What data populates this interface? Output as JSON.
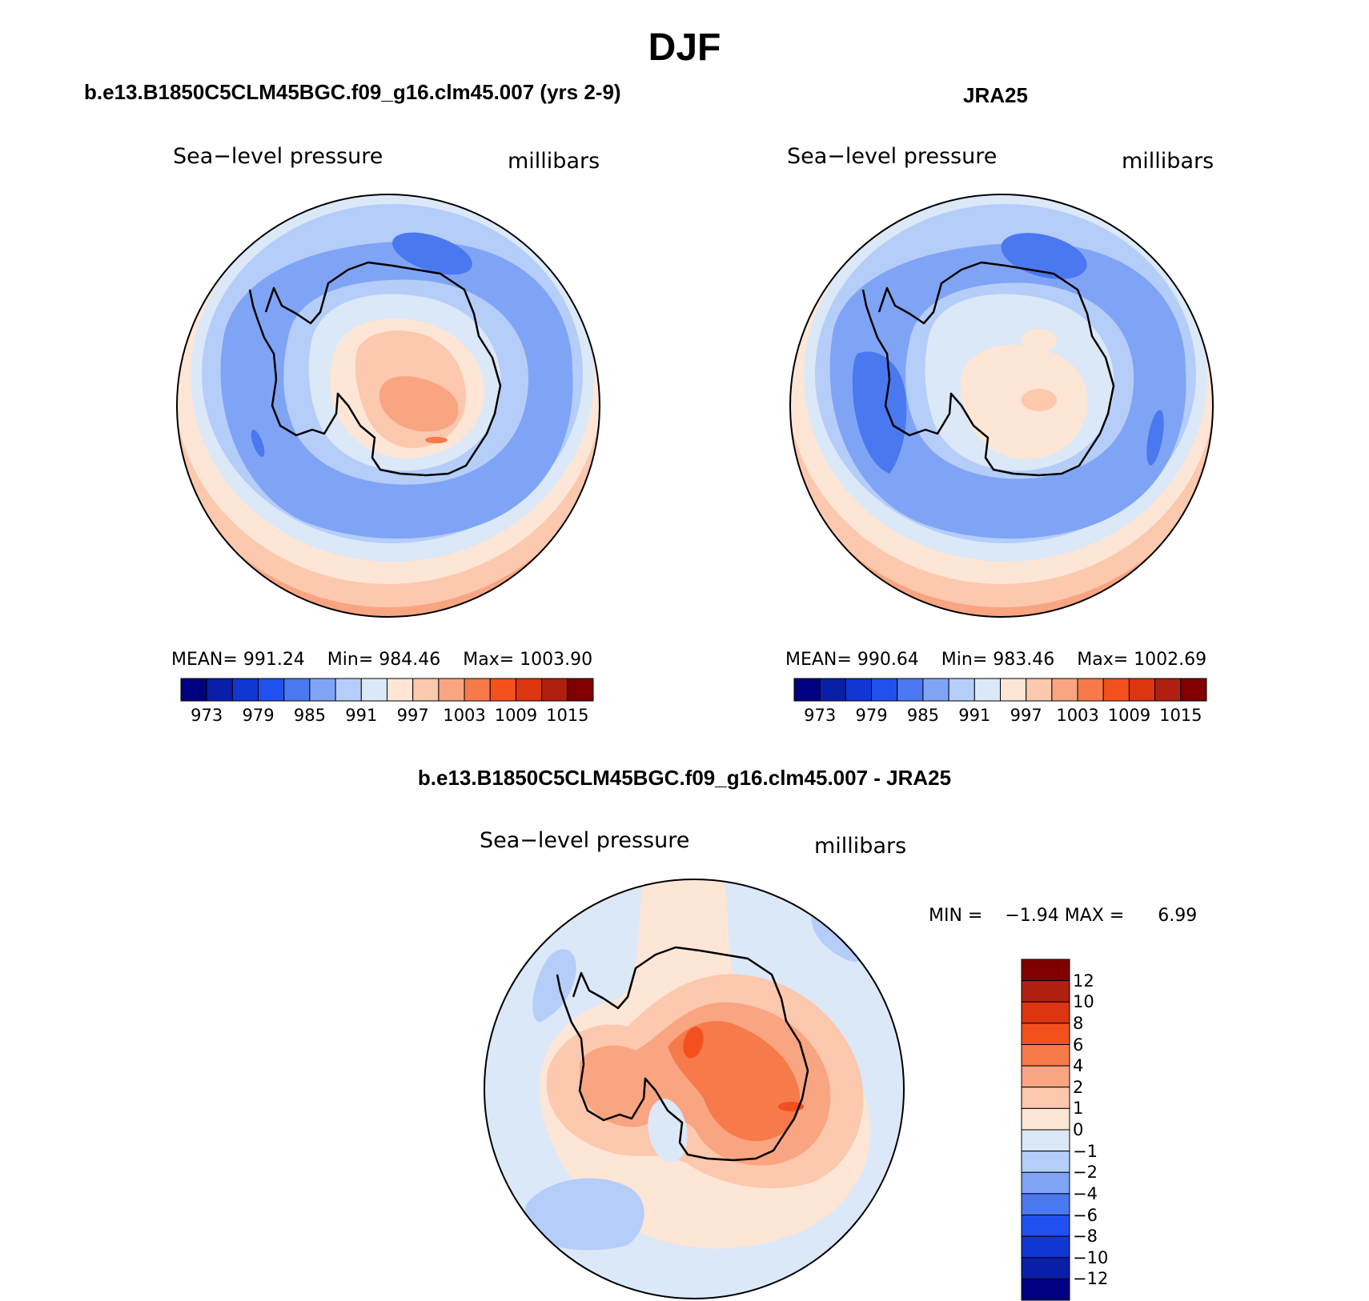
{
  "figure": {
    "title": "DJF",
    "variable": "Sea−level pressure",
    "units": "millibars"
  },
  "panels": [
    {
      "title": "b.e13.B1850C5CLM45BGC.f09_g16.clm45.007 (yrs 2-9)",
      "variable": "Sea−level pressure",
      "units": "millibars",
      "stats": {
        "mean_label": "MEAN=",
        "mean": "991.24",
        "min_label": "Min=",
        "min": "984.46",
        "max_label": "Max=",
        "max": "1003.90"
      }
    },
    {
      "title": "JRA25",
      "variable": "Sea−level pressure",
      "units": "millibars",
      "stats": {
        "mean_label": "MEAN=",
        "mean": "990.64",
        "min_label": "Min=",
        "min": "983.46",
        "max_label": "Max=",
        "max": "1002.69"
      }
    },
    {
      "title": "b.e13.B1850C5CLM45BGC.f09_g16.clm45.007 - JRA25",
      "variable": "Sea−level pressure",
      "units": "millibars",
      "stats": {
        "min_label": "MIN =",
        "min": "−1.94",
        "max_label": "MAX =",
        "max": "6.99"
      }
    }
  ],
  "colorbar_abs": {
    "colors": [
      "#000080",
      "#0a1fa8",
      "#1036d4",
      "#2050ee",
      "#4a78f0",
      "#80a4f5",
      "#b5cdf9",
      "#dbe8f8",
      "#fde6d6",
      "#fcc8ae",
      "#f9a582",
      "#f77a4a",
      "#f4501e",
      "#dc3510",
      "#b02010",
      "#800000"
    ],
    "labels": [
      "973",
      "979",
      "985",
      "991",
      "997",
      "1003",
      "1009",
      "1015"
    ]
  },
  "colorbar_diff": {
    "colors_top_to_bottom": [
      "#800000",
      "#b02010",
      "#dc3510",
      "#f4501e",
      "#f77a4a",
      "#f9a582",
      "#fcc8ae",
      "#fde6d6",
      "#dbe8f8",
      "#b5cdf9",
      "#80a4f5",
      "#4a78f0",
      "#2050ee",
      "#1036d4",
      "#0a1fa8",
      "#000080"
    ],
    "labels_top_to_bottom": [
      "12",
      "10",
      "8",
      "6",
      "4",
      "2",
      "1",
      "0",
      "−1",
      "−2",
      "−4",
      "−6",
      "−8",
      "−10",
      "−12"
    ]
  }
}
